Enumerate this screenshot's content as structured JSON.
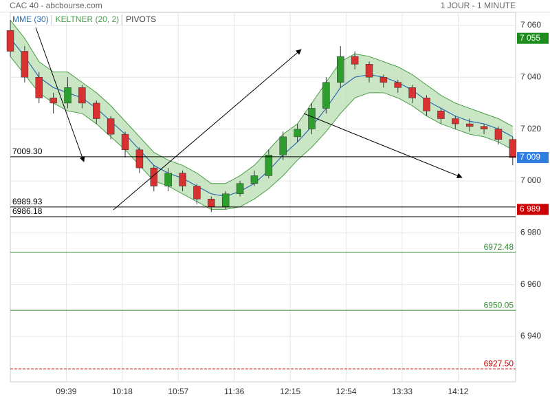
{
  "chart_data": {
    "type": "candlestick",
    "title": "CAC 40 - abcbourse.com",
    "subtitle": "1 JOUR - 1 MINUTE",
    "legend": [
      {
        "name": "MME (30)",
        "color": "#2b6cb0"
      },
      {
        "name": "KELTNER (20, 2)",
        "color": "#4a9e4a"
      },
      {
        "name": "PIVOTS",
        "color": "#444444"
      }
    ],
    "x": [
      "09:00",
      "09:10",
      "09:20",
      "09:30",
      "09:40",
      "09:50",
      "10:00",
      "10:10",
      "10:20",
      "10:30",
      "10:40",
      "10:50",
      "11:00",
      "11:10",
      "11:20",
      "11:30",
      "11:40",
      "11:50",
      "12:00",
      "12:10",
      "12:20",
      "12:30",
      "12:40",
      "12:50",
      "13:00",
      "13:10",
      "13:20",
      "13:30",
      "13:40",
      "13:50",
      "14:00",
      "14:10",
      "14:20",
      "14:30",
      "14:40",
      "14:50"
    ],
    "open": [
      7058,
      7050,
      7040,
      7032,
      7030,
      7036,
      7030,
      7024,
      7018,
      7012,
      7005,
      6998,
      7003,
      6998,
      6993,
      6990,
      6995,
      6999,
      7002,
      7010,
      7017,
      7020,
      7028,
      7038,
      7048,
      7045,
      7040,
      7038,
      7036,
      7032,
      7027,
      7024,
      7022,
      7021,
      7020,
      7016
    ],
    "high": [
      7062,
      7052,
      7042,
      7034,
      7040,
      7037,
      7031,
      7025,
      7019,
      7013,
      7006,
      7005,
      7004,
      6999,
      6994,
      6996,
      7000,
      7004,
      7012,
      7019,
      7022,
      7030,
      7040,
      7052,
      7050,
      7046,
      7041,
      7039,
      7037,
      7033,
      7028,
      7025,
      7024,
      7022,
      7021,
      7017
    ],
    "low": [
      7048,
      7038,
      7030,
      7026,
      7028,
      7028,
      7022,
      7016,
      7009,
      7003,
      6996,
      6996,
      6996,
      6991,
      6988,
      6989,
      6994,
      6998,
      7001,
      7008,
      7015,
      7018,
      7026,
      7036,
      7043,
      7038,
      7036,
      7034,
      7030,
      7025,
      7022,
      7020,
      7019,
      7018,
      7014,
      7006
    ],
    "close": [
      7050,
      7040,
      7032,
      7030,
      7036,
      7030,
      7024,
      7018,
      7012,
      7005,
      6998,
      7003,
      6998,
      6993,
      6990,
      6995,
      6999,
      7002,
      7010,
      7017,
      7020,
      7028,
      7038,
      7048,
      7045,
      7040,
      7038,
      7036,
      7032,
      7027,
      7024,
      7022,
      7021,
      7020,
      7016,
      7009
    ],
    "up_color": "#2e9e2e",
    "down_color": "#d93030",
    "ema": [
      7055,
      7048,
      7040,
      7036,
      7034,
      7032,
      7028,
      7023,
      7018,
      7012,
      7006,
      7003,
      7001,
      6998,
      6995,
      6994,
      6996,
      6999,
      7004,
      7010,
      7015,
      7021,
      7028,
      7036,
      7040,
      7041,
      7040,
      7038,
      7035,
      7031,
      7028,
      7025,
      7023,
      7022,
      7020,
      7017
    ],
    "keltner_upper": [
      7062,
      7055,
      7046,
      7042,
      7042,
      7038,
      7034,
      7029,
      7023,
      7017,
      7011,
      7008,
      7006,
      7003,
      6999,
      6999,
      7002,
      7006,
      7012,
      7018,
      7022,
      7030,
      7038,
      7046,
      7049,
      7048,
      7046,
      7044,
      7041,
      7037,
      7033,
      7030,
      7028,
      7026,
      7024,
      7021
    ],
    "keltner_lower": [
      7048,
      7041,
      7034,
      7030,
      7027,
      7026,
      7022,
      7017,
      7012,
      7006,
      7000,
      6998,
      6995,
      6992,
      6989,
      6989,
      6990,
      6993,
      6997,
      7002,
      7008,
      7013,
      7019,
      7026,
      7032,
      7034,
      7034,
      7032,
      7029,
      7025,
      7022,
      7020,
      7018,
      7017,
      7015,
      7012
    ],
    "levels": [
      {
        "value": 7009.3,
        "label": "7009.30",
        "color": "#000000",
        "side": "left"
      },
      {
        "value": 6989.93,
        "label": "6989.93",
        "color": "#000000",
        "side": "left"
      },
      {
        "value": 6986.18,
        "label": "6986.18",
        "color": "#000000",
        "side": "left"
      },
      {
        "value": 6972.48,
        "label": "6972.48",
        "color": "#2e8b2e",
        "side": "right"
      },
      {
        "value": 6950.05,
        "label": "6950.05",
        "color": "#2e8b2e",
        "side": "right"
      },
      {
        "value": 6927.5,
        "label": "6927.50",
        "color": "#cc0000",
        "side": "right"
      }
    ],
    "price_tags": [
      {
        "value": 7055,
        "label": "7 055",
        "color": "#1e8c1e"
      },
      {
        "value": 7009,
        "label": "7 009",
        "color": "#2f7fe0"
      },
      {
        "value": 6989,
        "label": "6 989",
        "color": "#cc0000"
      }
    ],
    "xlim": [
      "09:00",
      "14:52"
    ],
    "xticks": [
      "09:39",
      "10:18",
      "10:57",
      "11:36",
      "12:15",
      "12:54",
      "13:33",
      "14:12"
    ],
    "ylim": [
      6922.5,
      7065
    ],
    "yticks": [
      {
        "value": 6940,
        "label": "6 940"
      },
      {
        "value": 6960,
        "label": "6 960"
      },
      {
        "value": 6980,
        "label": "6 980"
      },
      {
        "value": 7000,
        "label": "7 000"
      },
      {
        "value": 7020,
        "label": "7 020"
      },
      {
        "value": 7040,
        "label": "7 040"
      },
      {
        "value": 7060,
        "label": "7 060"
      }
    ],
    "grid": true
  }
}
